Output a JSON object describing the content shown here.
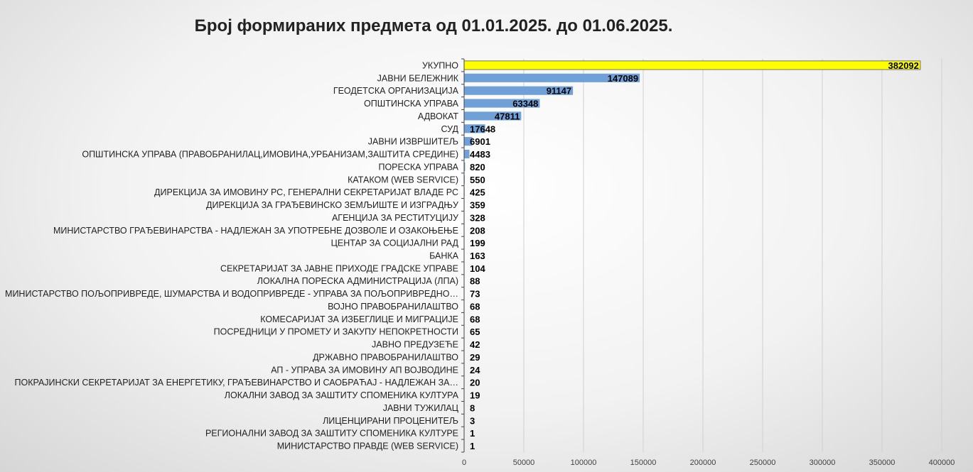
{
  "chart_data": {
    "type": "bar",
    "orientation": "horizontal",
    "title": "Број формираних предмета од 01.01.2025. до 01.06.2025.",
    "xlabel": "",
    "ylabel": "",
    "xlim": [
      0,
      400000
    ],
    "x_ticks": [
      "0",
      "50000",
      "100000",
      "150000",
      "200000",
      "250000",
      "300000",
      "350000",
      "400000"
    ],
    "grid": "vertical",
    "legend": "none",
    "colors": {
      "bar": "#6fa0d8",
      "highlight": "#ffff00",
      "highlight_border": "#555555"
    },
    "categories": [
      "УКУПНО",
      "ЈАВНИ БЕЛЕЖНИК",
      "ГЕОДЕТСКА ОРГАНИЗАЦИЈА",
      "ОПШТИНСКА УПРАВА",
      "АДВОКАТ",
      "СУД",
      "ЈАВНИ ИЗВРШИТЕЉ",
      "ОПШТИНСКА УПРАВА (ПРАВОБРАНИЛАЦ,ИМОВИНА,УРБАНИЗАМ,ЗАШТИТА СРЕДИНЕ)",
      "ПОРЕСКА УПРАВА",
      "КАТАКОМ (WEB SERVICE)",
      "ДИРЕКЦИЈА ЗА ИМОВИНУ РС, ГЕНЕРАЛНИ СЕКРЕТАРИЈАТ ВЛАДЕ РС",
      "ДИРЕКЦИЈА ЗА ГРАЂЕВИНСКО ЗЕМЉИШТЕ И ИЗГРАДЊУ",
      "АГЕНЦИЈА ЗА РЕСТИТУЦИЈУ",
      "МИНИСТАРСТВО ГРАЂЕВИНАРСТВА - НАДЛЕЖАН ЗА УПОТРЕБНЕ ДОЗВОЛЕ И ОЗАКОЊЕЊЕ",
      "ЦЕНТАР ЗА СОЦИЈАЛНИ РАД",
      "БАНКА",
      "СЕКРЕТАРИЈАТ ЗА ЈАВНЕ ПРИХОДЕ ГРАДСКЕ УПРАВЕ",
      "ЛОКАЛНА ПОРЕСКА АДМИНИСТРАЦИЈА (ЛПА)",
      "МИНИСТАРСТВО ПОЉОПРИВРЕДЕ, ШУМАРСТВА И ВОДОПРИВРЕДЕ - УПРАВА ЗА ПОЉОПРИВРЕДНО…",
      "ВОЈНО ПРАВОБРАНИЛАШТВО",
      "КОМЕСАРИЈАТ ЗА ИЗБЕГЛИЦЕ И МИГРАЦИЈЕ",
      "ПОСРЕДНИЦИ У ПРОМЕТУ И ЗАКУПУ НЕПОКРЕТНОСТИ",
      "ЈАВНО ПРЕДУЗЕЋЕ",
      "ДРЖАВНО ПРАВОБРАНИЛАШТВО",
      "АП - УПРАВА ЗА ИМОВИНУ АП ВОЈВОДИНЕ",
      "ПОКРАЈИНСКИ СЕКРЕТАРИЈАТ ЗА ЕНЕРГЕТИКУ, ГРАЂЕВИНАРСТВО И САОБРАЋАЈ - НАДЛЕЖАН ЗА…",
      "ЛОКАЛНИ ЗАВОД ЗА ЗАШТИТУ СПОМЕНИКА КУЛТУРА",
      "ЈАВНИ ТУЖИЛАЦ",
      "ЛИЦЕНЦИРАНИ ПРОЦЕНИТЕЉ",
      "РЕГИОНАЛНИ ЗАВОД ЗА ЗАШТИТУ СПОМЕНИКА КУЛТУРЕ",
      "МИНИСТАРСТВО ПРАВДЕ (WEB SERVICE)"
    ],
    "values": [
      382092,
      147089,
      91147,
      63348,
      47811,
      17648,
      6901,
      4483,
      820,
      550,
      425,
      359,
      328,
      208,
      199,
      163,
      104,
      88,
      73,
      68,
      68,
      65,
      42,
      29,
      24,
      20,
      19,
      8,
      3,
      1,
      1
    ],
    "value_labels": [
      "382092",
      "147089",
      "91147",
      "63348",
      "47811",
      "17648",
      "6901",
      "4483",
      "820",
      "550",
      "425",
      "359",
      "328",
      "208",
      "199",
      "163",
      "104",
      "88",
      "73",
      "68",
      "68",
      "65",
      "42",
      "29",
      "24",
      "20",
      "19",
      "8",
      "3",
      "1",
      "1"
    ],
    "highlighted_index": 0
  }
}
